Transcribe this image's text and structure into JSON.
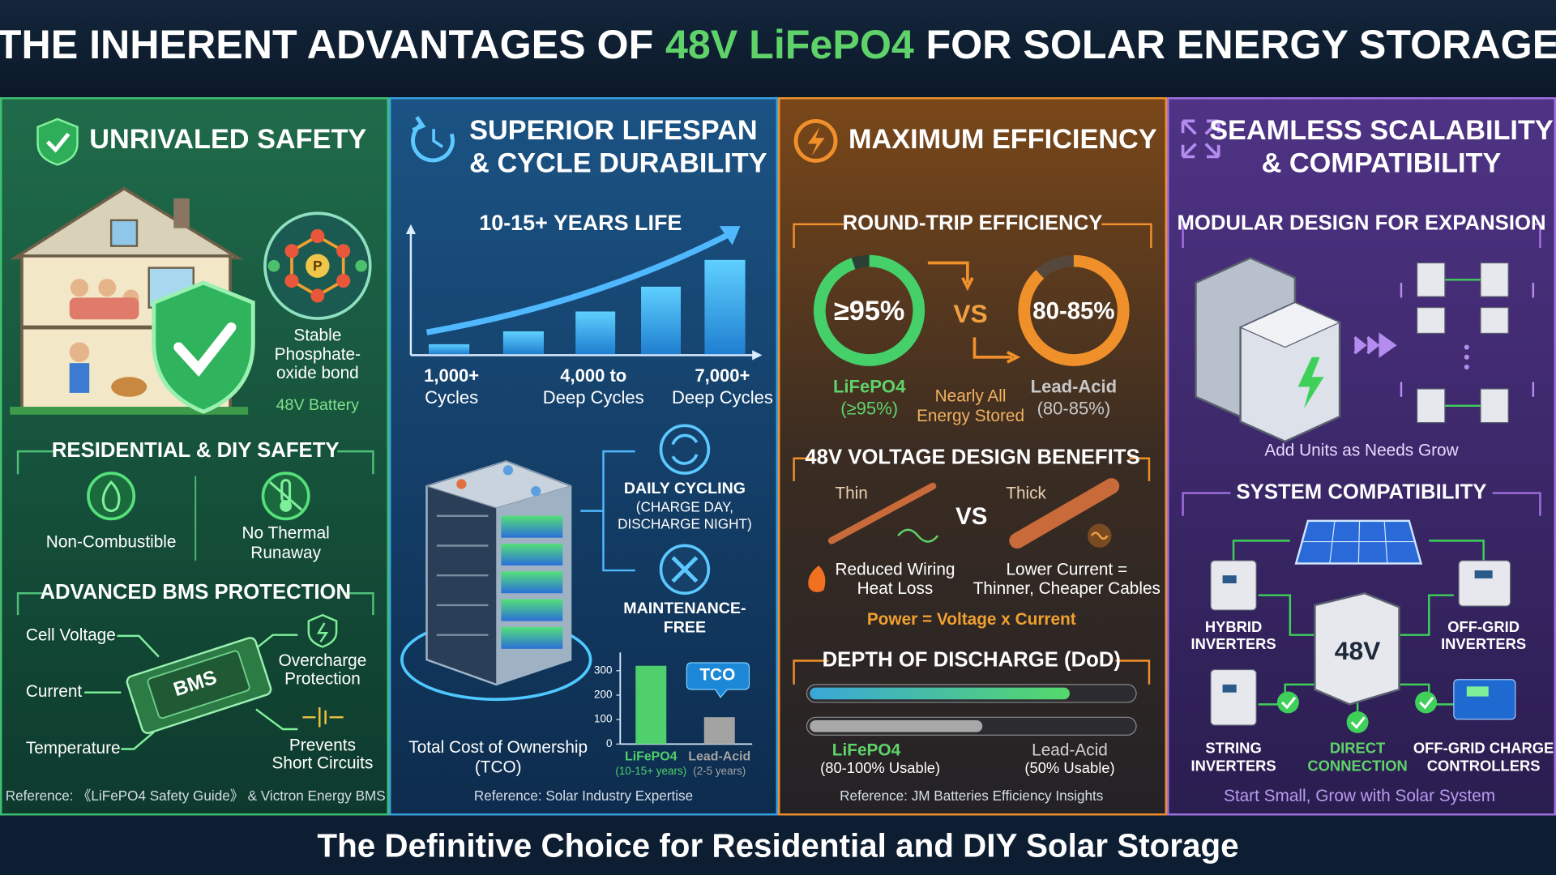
{
  "header": {
    "title_start": "THE INHERENT ADVANTAGES OF",
    "title_highlight": "48V LiFePO4",
    "title_end": "FOR SOLAR ENERGY STORAGE"
  },
  "panels": [
    {
      "title": [
        "UNRIVALED SAFETY"
      ],
      "molecule_symbol": "P",
      "molecule_label": [
        "Stable",
        "Phosphate-",
        "oxide bond"
      ],
      "battery_label": "48V Battery",
      "residential": {
        "title": "RESIDENTIAL & DIY SAFETY",
        "items": [
          [
            "Non-Combustible"
          ],
          [
            "No Thermal",
            "Runaway"
          ]
        ]
      },
      "bms": {
        "title": "ADVANCED BMS PROTECTION",
        "inputs": [
          "Cell Voltage",
          "Current",
          "Temperature"
        ],
        "chip": "BMS",
        "outputs": [
          [
            "Overcharge",
            "Protection"
          ],
          [
            "Prevents",
            "Short Circuits"
          ]
        ]
      },
      "reference": "Reference: 《LiFePO4 Safety Guide》 & Victron Energy BMS"
    },
    {
      "title": [
        "SUPERIOR LIFESPAN",
        "& CYCLE DURABILITY"
      ],
      "life_title": "10-15+ YEARS LIFE",
      "cycles": [
        [
          "1,000+",
          "Cycles"
        ],
        [
          "4,000 to",
          "Deep Cycles"
        ],
        [
          "7,000+",
          "Deep Cycles"
        ]
      ],
      "features": [
        {
          "title": "DAILY CYCLING",
          "note": [
            "(CHARGE DAY,",
            "DISCHARGE NIGHT)"
          ]
        },
        {
          "title": [
            "MAINTENANCE-",
            "FREE"
          ]
        }
      ],
      "tco": {
        "type": "bar",
        "label": [
          "Total Cost of Ownership",
          "(TCO)"
        ],
        "callout": "TCO",
        "categories": [
          "LiFePO4",
          "Lead-Acid"
        ],
        "notes": [
          "(10-15+ years)",
          "(2-5 years)"
        ],
        "values": [
          320,
          110
        ],
        "colors": [
          "#4fd06c",
          "#a3a3a3"
        ],
        "ylim": [
          0,
          350
        ],
        "yticks": [
          0,
          100,
          200,
          300
        ]
      },
      "reference": "Reference: Solar Industry Expertise"
    },
    {
      "title": [
        "MAXIMUM EFFICIENCY"
      ],
      "round_trip": {
        "title": "ROUND-TRIP EFFICIENCY",
        "left_gauge": "≥95%",
        "vs": "VS",
        "right_gauge": "80-85%",
        "left_label": [
          "LiFePO4",
          "(≥95%)"
        ],
        "middle_label": [
          "Nearly All",
          "Energy Stored"
        ],
        "right_label": [
          "Lead-Acid",
          "(80-85%)"
        ]
      },
      "voltage": {
        "title": "48V VOLTAGE DESIGN BENEFITS",
        "thin": "Thin",
        "vs": "VS",
        "thick": "Thick",
        "left_label": [
          "Reduced Wiring",
          "Heat Loss"
        ],
        "right_label": [
          "Lower Current =",
          "Thinner, Cheaper Cables"
        ],
        "formula": "Power = Voltage x Current"
      },
      "dod": {
        "title": "DEPTH OF DISCHARGE (DoD)",
        "left_label": [
          "LiFePO4",
          "(80-100% Usable)"
        ],
        "right_label": [
          "Lead-Acid",
          "(50% Usable)"
        ]
      },
      "reference": "Reference: JM Batteries Efficiency Insights"
    },
    {
      "title": [
        "SEAMLESS SCALABILITY",
        "& COMPATIBILITY"
      ],
      "modular": {
        "title": "MODULAR DESIGN FOR EXPANSION",
        "caption": "Add Units as Needs Grow"
      },
      "compat": {
        "title": "SYSTEM COMPATIBILITY",
        "battery": "48V",
        "items": [
          [
            "HYBRID",
            "INVERTERS"
          ],
          [
            "OFF-GRID",
            "INVERTERS"
          ],
          [
            "STRING",
            "INVERTERS"
          ],
          [
            "DIRECT",
            "CONNECTION"
          ],
          [
            "OFF-GRID CHARGE",
            "CONTROLLERS"
          ]
        ]
      },
      "reference": "Start Small, Grow with Solar System"
    }
  ],
  "footer": "The Definitive Choice for Residential and DIY Solar Storage"
}
